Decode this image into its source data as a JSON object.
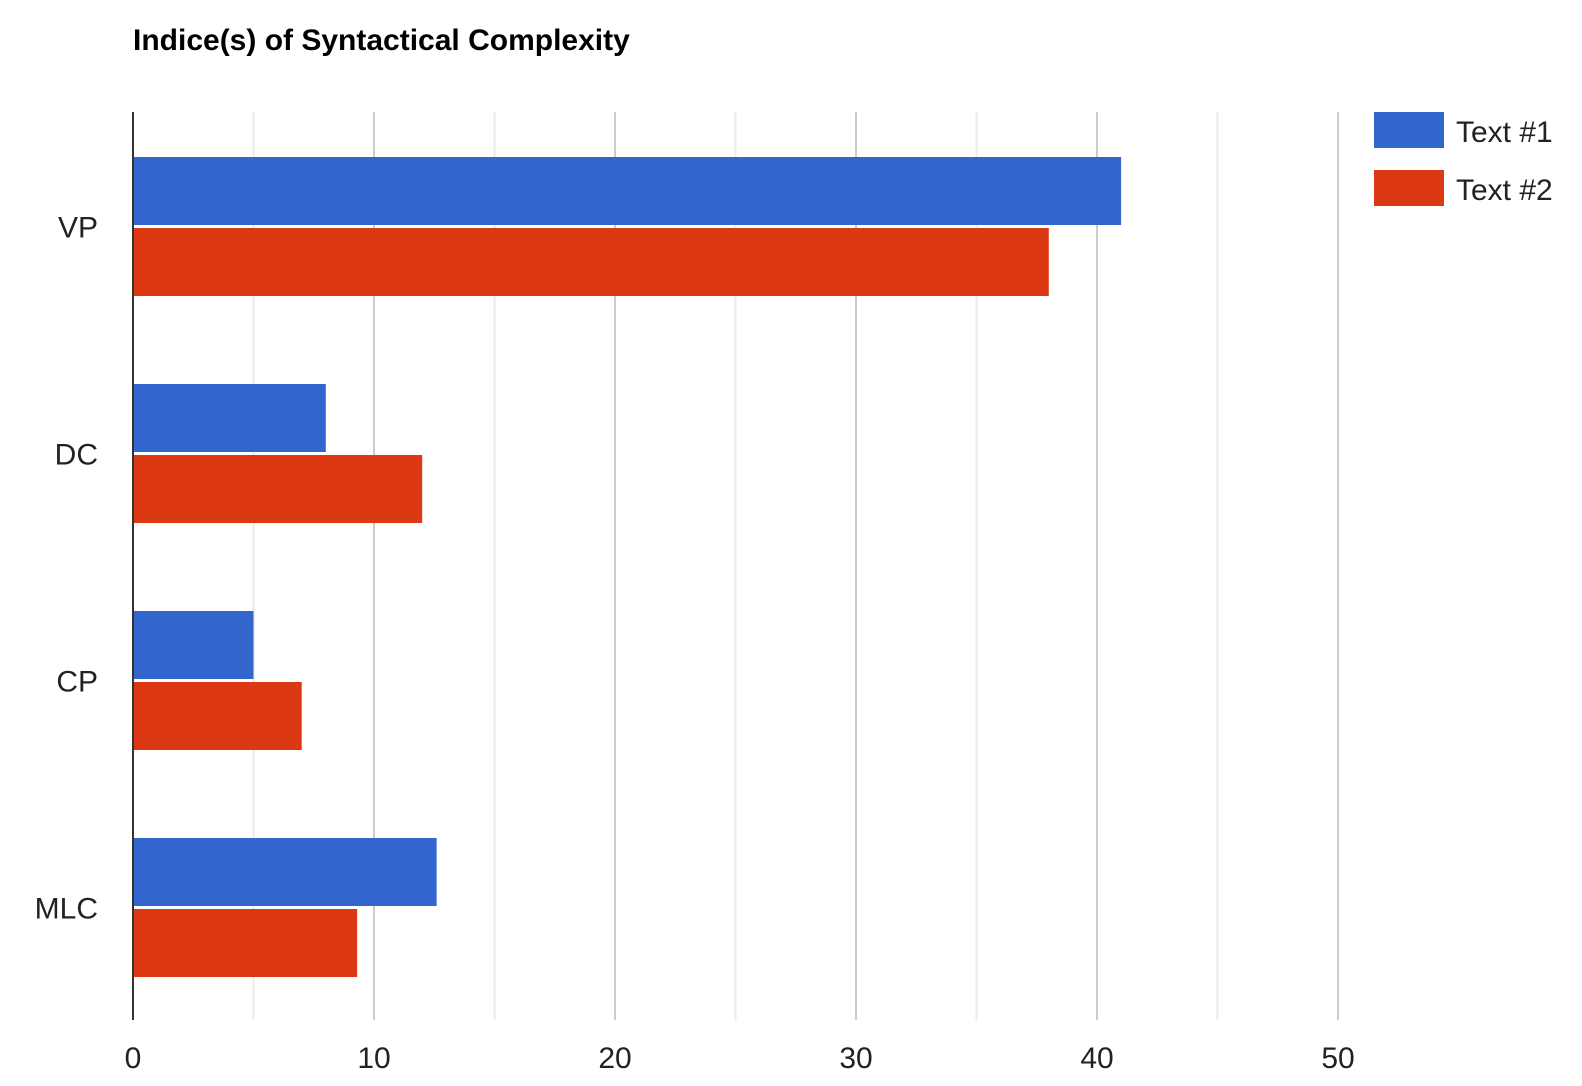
{
  "chart_data": {
    "type": "bar",
    "orientation": "horizontal",
    "title": "Indice(s) of Syntactical Complexity",
    "xlabel": "",
    "ylabel": "",
    "categories": [
      "VP",
      "DC",
      "CP",
      "MLC"
    ],
    "series": [
      {
        "name": "Text #1",
        "color": "#3366cc",
        "values": [
          41,
          8,
          5,
          12.6
        ]
      },
      {
        "name": "Text #2",
        "color": "#dc3912",
        "values": [
          38,
          12,
          7,
          9.3
        ]
      }
    ],
    "xlim": [
      0,
      57
    ],
    "x_ticks": [
      0,
      10,
      20,
      30,
      40,
      50
    ],
    "minor_gridlines": [
      5,
      15,
      25,
      35,
      45
    ],
    "grid": true,
    "legend_position": "top-right",
    "colors": {
      "axis": "#333333",
      "major_grid": "#cccccc",
      "minor_grid": "#ebebeb",
      "text": "#222222",
      "title": "#000000"
    }
  }
}
